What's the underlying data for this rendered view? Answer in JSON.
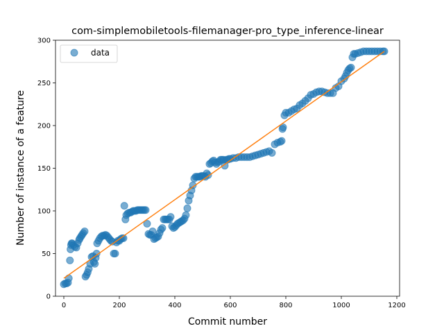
{
  "chart_data": {
    "type": "scatter",
    "title": "com-simplemobiletools-filemanager-pro_type_inference-linear",
    "xlabel": "Commit number",
    "ylabel": "Number of instance of a feature",
    "xlim": [
      -30,
      1210
    ],
    "ylim": [
      0,
      300
    ],
    "xticks": [
      0,
      200,
      400,
      600,
      800,
      1000,
      1200
    ],
    "yticks": [
      0,
      50,
      100,
      150,
      200,
      250,
      300
    ],
    "grid": false,
    "legend_position": "top-left",
    "colors": {
      "points": "#1f77b4",
      "fit": "#ff7f0e"
    },
    "series": [
      {
        "name": "data",
        "kind": "points",
        "points": [
          [
            0,
            14
          ],
          [
            5,
            15
          ],
          [
            10,
            15
          ],
          [
            15,
            16
          ],
          [
            18,
            21
          ],
          [
            22,
            42
          ],
          [
            24,
            55
          ],
          [
            26,
            60
          ],
          [
            28,
            62
          ],
          [
            30,
            62
          ],
          [
            35,
            60
          ],
          [
            40,
            58
          ],
          [
            45,
            57
          ],
          [
            50,
            62
          ],
          [
            55,
            66
          ],
          [
            58,
            68
          ],
          [
            62,
            70
          ],
          [
            66,
            72
          ],
          [
            70,
            74
          ],
          [
            75,
            76
          ],
          [
            78,
            23
          ],
          [
            82,
            25
          ],
          [
            86,
            28
          ],
          [
            90,
            32
          ],
          [
            95,
            38
          ],
          [
            100,
            46
          ],
          [
            105,
            47
          ],
          [
            108,
            40
          ],
          [
            112,
            38
          ],
          [
            115,
            45
          ],
          [
            118,
            50
          ],
          [
            120,
            62
          ],
          [
            125,
            65
          ],
          [
            130,
            68
          ],
          [
            135,
            70
          ],
          [
            140,
            71
          ],
          [
            145,
            71
          ],
          [
            150,
            72
          ],
          [
            155,
            71
          ],
          [
            160,
            69
          ],
          [
            165,
            67
          ],
          [
            170,
            65
          ],
          [
            175,
            64
          ],
          [
            180,
            50
          ],
          [
            185,
            50
          ],
          [
            190,
            63
          ],
          [
            195,
            65
          ],
          [
            200,
            65
          ],
          [
            205,
            67
          ],
          [
            210,
            68
          ],
          [
            215,
            68
          ],
          [
            218,
            106
          ],
          [
            222,
            90
          ],
          [
            225,
            95
          ],
          [
            230,
            97
          ],
          [
            235,
            98
          ],
          [
            240,
            98
          ],
          [
            245,
            99
          ],
          [
            250,
            100
          ],
          [
            255,
            100
          ],
          [
            260,
            100
          ],
          [
            265,
            101
          ],
          [
            270,
            101
          ],
          [
            275,
            101
          ],
          [
            280,
            101
          ],
          [
            285,
            101
          ],
          [
            290,
            101
          ],
          [
            295,
            101
          ],
          [
            300,
            85
          ],
          [
            305,
            73
          ],
          [
            310,
            72
          ],
          [
            315,
            72
          ],
          [
            320,
            76
          ],
          [
            325,
            67
          ],
          [
            330,
            68
          ],
          [
            335,
            69
          ],
          [
            340,
            70
          ],
          [
            345,
            74
          ],
          [
            350,
            78
          ],
          [
            355,
            80
          ],
          [
            360,
            90
          ],
          [
            365,
            90
          ],
          [
            370,
            90
          ],
          [
            375,
            90
          ],
          [
            380,
            90
          ],
          [
            385,
            93
          ],
          [
            390,
            82
          ],
          [
            395,
            80
          ],
          [
            400,
            81
          ],
          [
            405,
            83
          ],
          [
            410,
            85
          ],
          [
            415,
            86
          ],
          [
            420,
            87
          ],
          [
            425,
            88
          ],
          [
            430,
            89
          ],
          [
            435,
            91
          ],
          [
            440,
            95
          ],
          [
            445,
            103
          ],
          [
            450,
            112
          ],
          [
            455,
            118
          ],
          [
            460,
            124
          ],
          [
            465,
            130
          ],
          [
            470,
            138
          ],
          [
            475,
            140
          ],
          [
            480,
            140
          ],
          [
            485,
            140
          ],
          [
            490,
            140
          ],
          [
            495,
            141
          ],
          [
            500,
            141
          ],
          [
            505,
            141
          ],
          [
            510,
            140
          ],
          [
            515,
            144
          ],
          [
            520,
            142
          ],
          [
            525,
            155
          ],
          [
            530,
            156
          ],
          [
            535,
            158
          ],
          [
            540,
            159
          ],
          [
            545,
            157
          ],
          [
            550,
            155
          ],
          [
            555,
            157
          ],
          [
            560,
            158
          ],
          [
            565,
            160
          ],
          [
            570,
            160
          ],
          [
            575,
            160
          ],
          [
            580,
            153
          ],
          [
            585,
            160
          ],
          [
            590,
            160
          ],
          [
            595,
            161
          ],
          [
            600,
            161
          ],
          [
            610,
            162
          ],
          [
            620,
            162
          ],
          [
            630,
            163
          ],
          [
            640,
            163
          ],
          [
            650,
            163
          ],
          [
            660,
            163
          ],
          [
            670,
            163
          ],
          [
            680,
            164
          ],
          [
            690,
            165
          ],
          [
            700,
            166
          ],
          [
            710,
            167
          ],
          [
            720,
            168
          ],
          [
            730,
            169
          ],
          [
            740,
            170
          ],
          [
            750,
            168
          ],
          [
            760,
            178
          ],
          [
            770,
            180
          ],
          [
            780,
            181
          ],
          [
            785,
            182
          ],
          [
            788,
            196
          ],
          [
            790,
            198
          ],
          [
            795,
            212
          ],
          [
            800,
            215
          ],
          [
            810,
            215
          ],
          [
            820,
            217
          ],
          [
            830,
            219
          ],
          [
            840,
            220
          ],
          [
            850,
            224
          ],
          [
            860,
            226
          ],
          [
            870,
            229
          ],
          [
            880,
            232
          ],
          [
            890,
            236
          ],
          [
            900,
            237
          ],
          [
            910,
            239
          ],
          [
            920,
            240
          ],
          [
            930,
            240
          ],
          [
            940,
            239
          ],
          [
            950,
            238
          ],
          [
            960,
            238
          ],
          [
            970,
            238
          ],
          [
            980,
            244
          ],
          [
            990,
            246
          ],
          [
            1000,
            252
          ],
          [
            1010,
            255
          ],
          [
            1015,
            258
          ],
          [
            1020,
            262
          ],
          [
            1025,
            265
          ],
          [
            1030,
            267
          ],
          [
            1035,
            268
          ],
          [
            1040,
            280
          ],
          [
            1045,
            284
          ],
          [
            1050,
            284
          ],
          [
            1060,
            285
          ],
          [
            1070,
            286
          ],
          [
            1080,
            287
          ],
          [
            1090,
            287
          ],
          [
            1100,
            287
          ],
          [
            1110,
            287
          ],
          [
            1120,
            287
          ],
          [
            1130,
            287
          ],
          [
            1140,
            287
          ],
          [
            1150,
            287
          ],
          [
            1155,
            287
          ]
        ]
      },
      {
        "name": "",
        "kind": "line",
        "points": [
          [
            0,
            21
          ],
          [
            1155,
            287
          ]
        ]
      }
    ]
  }
}
